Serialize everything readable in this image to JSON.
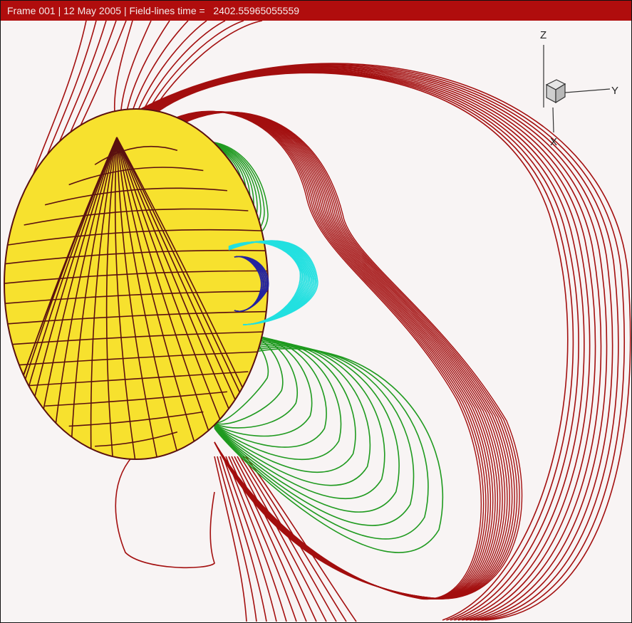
{
  "title_bar": {
    "text": "Frame 001 | 12 May 2005 | Field-lines time =   2402.55965055559"
  },
  "axes": {
    "z_label": "Z",
    "y_label": "Y",
    "x_label": "X"
  },
  "colors": {
    "title_background": "#b00d0d",
    "background": "#f8f4f4",
    "sphere_fill": "#f7e12e",
    "grid_lines": "#5a1010",
    "outer_field_lines": "#a30f0f",
    "inner_field_lines": "#1f9a1f",
    "cyan_field_lines": "#22e0e0",
    "blue_field_lines": "#2323a0"
  },
  "icons": [
    "axis-triad-icon",
    "axis-cube-icon"
  ]
}
